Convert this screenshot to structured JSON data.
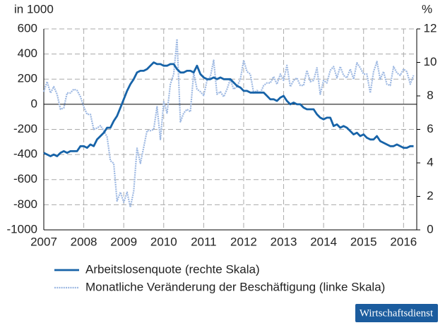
{
  "chart_data": {
    "type": "line",
    "y_label": "in 1000",
    "y2_label": "%",
    "x": [
      2007,
      2007.083,
      2007.167,
      2007.25,
      2007.333,
      2007.417,
      2007.5,
      2007.583,
      2007.667,
      2007.75,
      2007.833,
      2007.917,
      2008,
      2008.083,
      2008.167,
      2008.25,
      2008.333,
      2008.417,
      2008.5,
      2008.583,
      2008.667,
      2008.75,
      2008.833,
      2008.917,
      2009,
      2009.083,
      2009.167,
      2009.25,
      2009.333,
      2009.417,
      2009.5,
      2009.583,
      2009.667,
      2009.75,
      2009.833,
      2009.917,
      2010,
      2010.083,
      2010.167,
      2010.25,
      2010.333,
      2010.417,
      2010.5,
      2010.583,
      2010.667,
      2010.75,
      2010.833,
      2010.917,
      2011,
      2011.083,
      2011.167,
      2011.25,
      2011.333,
      2011.417,
      2011.5,
      2011.583,
      2011.667,
      2011.75,
      2011.833,
      2011.917,
      2012,
      2012.083,
      2012.167,
      2012.25,
      2012.333,
      2012.417,
      2012.5,
      2012.583,
      2012.667,
      2012.75,
      2012.833,
      2012.917,
      2013,
      2013.083,
      2013.167,
      2013.25,
      2013.333,
      2013.417,
      2013.5,
      2013.583,
      2013.667,
      2013.75,
      2013.833,
      2013.917,
      2014,
      2014.083,
      2014.167,
      2014.25,
      2014.333,
      2014.417,
      2014.5,
      2014.583,
      2014.667,
      2014.75,
      2014.833,
      2014.917,
      2015,
      2015.083,
      2015.167,
      2015.25,
      2015.333,
      2015.417,
      2015.5,
      2015.583,
      2015.667,
      2015.75,
      2015.833,
      2015.917,
      2016,
      2016.083,
      2016.167,
      2016.25
    ],
    "series": [
      {
        "name": "Arbeitslosenquote (rechte Skala)",
        "color": "#1763a8",
        "axis": "y2",
        "values": [
          4.6,
          4.5,
          4.4,
          4.5,
          4.4,
          4.6,
          4.7,
          4.6,
          4.7,
          4.7,
          4.7,
          5.0,
          5.0,
          4.9,
          5.1,
          5.0,
          5.4,
          5.6,
          5.8,
          6.1,
          6.1,
          6.5,
          6.8,
          7.3,
          7.8,
          8.3,
          8.7,
          9.0,
          9.4,
          9.5,
          9.5,
          9.6,
          9.8,
          10.0,
          9.9,
          9.9,
          9.8,
          9.8,
          9.9,
          9.9,
          9.6,
          9.4,
          9.4,
          9.5,
          9.5,
          9.4,
          9.8,
          9.3,
          9.1,
          9.0,
          9.0,
          9.1,
          9.0,
          9.1,
          9.0,
          9.0,
          9.0,
          8.8,
          8.6,
          8.5,
          8.3,
          8.3,
          8.2,
          8.2,
          8.2,
          8.2,
          8.2,
          8.0,
          7.8,
          7.8,
          7.7,
          7.9,
          8.0,
          7.7,
          7.5,
          7.6,
          7.5,
          7.5,
          7.3,
          7.2,
          7.2,
          7.2,
          6.9,
          6.7,
          6.6,
          6.7,
          6.7,
          6.2,
          6.3,
          6.1,
          6.2,
          6.1,
          5.9,
          5.7,
          5.8,
          5.6,
          5.7,
          5.5,
          5.4,
          5.4,
          5.6,
          5.3,
          5.2,
          5.1,
          5.0,
          5.0,
          5.1,
          5.0,
          4.9,
          4.9,
          5.0,
          5.0
        ]
      },
      {
        "name": "Monatliche Veränderung der Beschäftigung (linke Skala)",
        "color": "#9db8e2",
        "axis": "y",
        "values": [
          100,
          180,
          90,
          140,
          80,
          -40,
          -30,
          90,
          90,
          120,
          110,
          60,
          -20,
          -80,
          -80,
          -200,
          -190,
          -170,
          -210,
          -260,
          -450,
          -470,
          -770,
          -700,
          -780,
          -700,
          -820,
          -690,
          -350,
          -470,
          -340,
          -210,
          -210,
          -200,
          -20,
          -280,
          20,
          -70,
          160,
          240,
          520,
          -140,
          -70,
          -40,
          -60,
          250,
          120,
          100,
          70,
          190,
          220,
          350,
          80,
          100,
          60,
          120,
          200,
          120,
          140,
          200,
          350,
          260,
          240,
          90,
          110,
          90,
          150,
          170,
          170,
          220,
          160,
          240,
          190,
          310,
          140,
          190,
          210,
          150,
          150,
          270,
          180,
          190,
          290,
          80,
          190,
          170,
          270,
          300,
          210,
          300,
          230,
          210,
          280,
          200,
          330,
          290,
          240,
          240,
          90,
          260,
          340,
          200,
          260,
          160,
          150,
          300,
          250,
          230,
          280,
          260,
          160,
          230
        ]
      }
    ],
    "xlim": [
      2007,
      2016.33
    ],
    "xticks": [
      2007,
      2008,
      2009,
      2010,
      2011,
      2012,
      2013,
      2014,
      2015,
      2016
    ],
    "ylim": [
      -1000,
      600
    ],
    "yticks": [
      -1000,
      -800,
      -600,
      -400,
      -200,
      0,
      200,
      400,
      600
    ],
    "y2lim": [
      0,
      12
    ],
    "y2ticks": [
      0,
      2,
      4,
      6,
      8,
      10,
      12
    ],
    "grid": true,
    "source": "Wirtschaftsdienst"
  }
}
